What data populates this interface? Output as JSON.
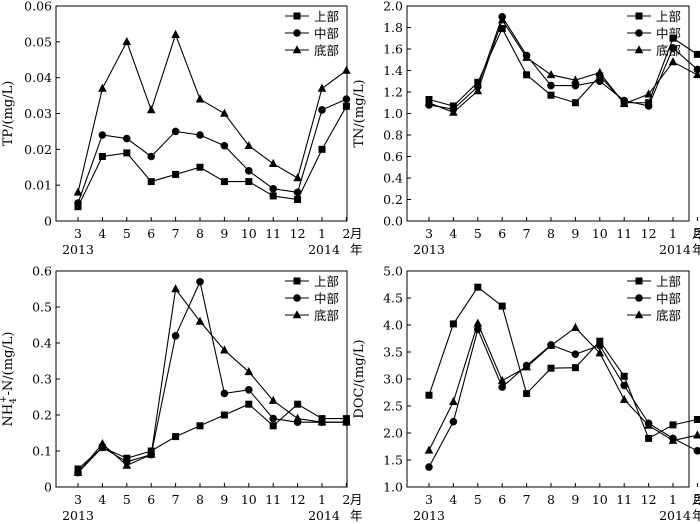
{
  "months": [
    "3",
    "4",
    "5",
    "6",
    "7",
    "8",
    "9",
    "10",
    "11",
    "12",
    "1",
    "2"
  ],
  "year_start": "2013",
  "year_end": "2014",
  "unit_month": "月",
  "unit_year": "年",
  "legend": [
    "上部",
    "中部",
    "底部"
  ],
  "chart_data": [
    {
      "type": "line",
      "ylabel": "TP/(mg/L)",
      "ylim": [
        0,
        0.06
      ],
      "yticks": [
        "0",
        "0.01",
        "0.02",
        "0.03",
        "0.04",
        "0.05",
        "0.06"
      ],
      "legend_position": "top-right",
      "series": [
        {
          "name": "上部",
          "marker": "square",
          "values": [
            0.004,
            0.018,
            0.019,
            0.011,
            0.013,
            0.015,
            0.011,
            0.011,
            0.007,
            0.006,
            0.02,
            0.032
          ]
        },
        {
          "name": "中部",
          "marker": "circle",
          "values": [
            0.005,
            0.024,
            0.023,
            0.018,
            0.025,
            0.024,
            0.021,
            0.014,
            0.009,
            0.008,
            0.031,
            0.034
          ]
        },
        {
          "name": "底部",
          "marker": "triangle",
          "values": [
            0.008,
            0.037,
            0.05,
            0.031,
            0.052,
            0.034,
            0.03,
            0.021,
            0.016,
            0.012,
            0.037,
            0.042
          ]
        }
      ]
    },
    {
      "type": "line",
      "ylabel": "TN/(mg/L)",
      "ylim": [
        0.0,
        2.0
      ],
      "yticks": [
        "0.0",
        "0.2",
        "0.4",
        "0.6",
        "0.8",
        "1.0",
        "1.2",
        "1.4",
        "1.6",
        "1.8",
        "2.0"
      ],
      "legend_position": "top-right",
      "series": [
        {
          "name": "上部",
          "marker": "square",
          "values": [
            1.13,
            1.07,
            1.29,
            1.79,
            1.36,
            1.17,
            1.1,
            1.35,
            1.1,
            1.1,
            1.7,
            1.55
          ]
        },
        {
          "name": "中部",
          "marker": "circle",
          "values": [
            1.08,
            1.04,
            1.25,
            1.9,
            1.54,
            1.26,
            1.26,
            1.3,
            1.12,
            1.07,
            1.61,
            1.41
          ]
        },
        {
          "name": "底部",
          "marker": "triangle",
          "values": [
            1.1,
            1.01,
            1.21,
            1.87,
            1.52,
            1.36,
            1.31,
            1.38,
            1.09,
            1.18,
            1.48,
            1.36
          ]
        }
      ]
    },
    {
      "type": "line",
      "ylabel_parts": [
        "NH",
        "4",
        "+",
        "-N/(mg/L)"
      ],
      "ylim": [
        0,
        0.6
      ],
      "yticks": [
        "0",
        "0.1",
        "0.2",
        "0.3",
        "0.4",
        "0.5",
        "0.6"
      ],
      "legend_position": "top-right",
      "series": [
        {
          "name": "上部",
          "marker": "square",
          "values": [
            0.05,
            0.11,
            0.08,
            0.1,
            0.14,
            0.17,
            0.2,
            0.23,
            0.17,
            0.23,
            0.19,
            0.19
          ]
        },
        {
          "name": "中部",
          "marker": "circle",
          "values": [
            0.04,
            0.11,
            0.07,
            0.09,
            0.42,
            0.57,
            0.26,
            0.27,
            0.19,
            0.18,
            0.18,
            0.18
          ]
        },
        {
          "name": "底部",
          "marker": "triangle",
          "values": [
            0.04,
            0.12,
            0.06,
            0.09,
            0.55,
            0.46,
            0.38,
            0.32,
            0.24,
            0.19,
            0.18,
            0.18
          ]
        }
      ]
    },
    {
      "type": "line",
      "ylabel": "DOC/(mg/L)",
      "ylim": [
        1.0,
        5.0
      ],
      "yticks": [
        "1.0",
        "1.5",
        "2.0",
        "2.5",
        "3.0",
        "3.5",
        "4.0",
        "4.5",
        "5.0"
      ],
      "legend_position": "top-right",
      "series": [
        {
          "name": "上部",
          "marker": "square",
          "values": [
            2.7,
            4.02,
            4.7,
            4.35,
            2.73,
            3.2,
            3.21,
            3.7,
            3.05,
            1.9,
            2.15,
            2.25
          ]
        },
        {
          "name": "中部",
          "marker": "circle",
          "values": [
            1.37,
            2.21,
            3.92,
            2.85,
            3.25,
            3.63,
            3.46,
            3.62,
            2.88,
            2.18,
            1.9,
            1.67
          ]
        },
        {
          "name": "底部",
          "marker": "triangle",
          "values": [
            1.68,
            2.58,
            4.03,
            2.97,
            3.22,
            3.62,
            3.95,
            3.48,
            2.62,
            2.14,
            1.86,
            1.96
          ]
        }
      ]
    }
  ]
}
